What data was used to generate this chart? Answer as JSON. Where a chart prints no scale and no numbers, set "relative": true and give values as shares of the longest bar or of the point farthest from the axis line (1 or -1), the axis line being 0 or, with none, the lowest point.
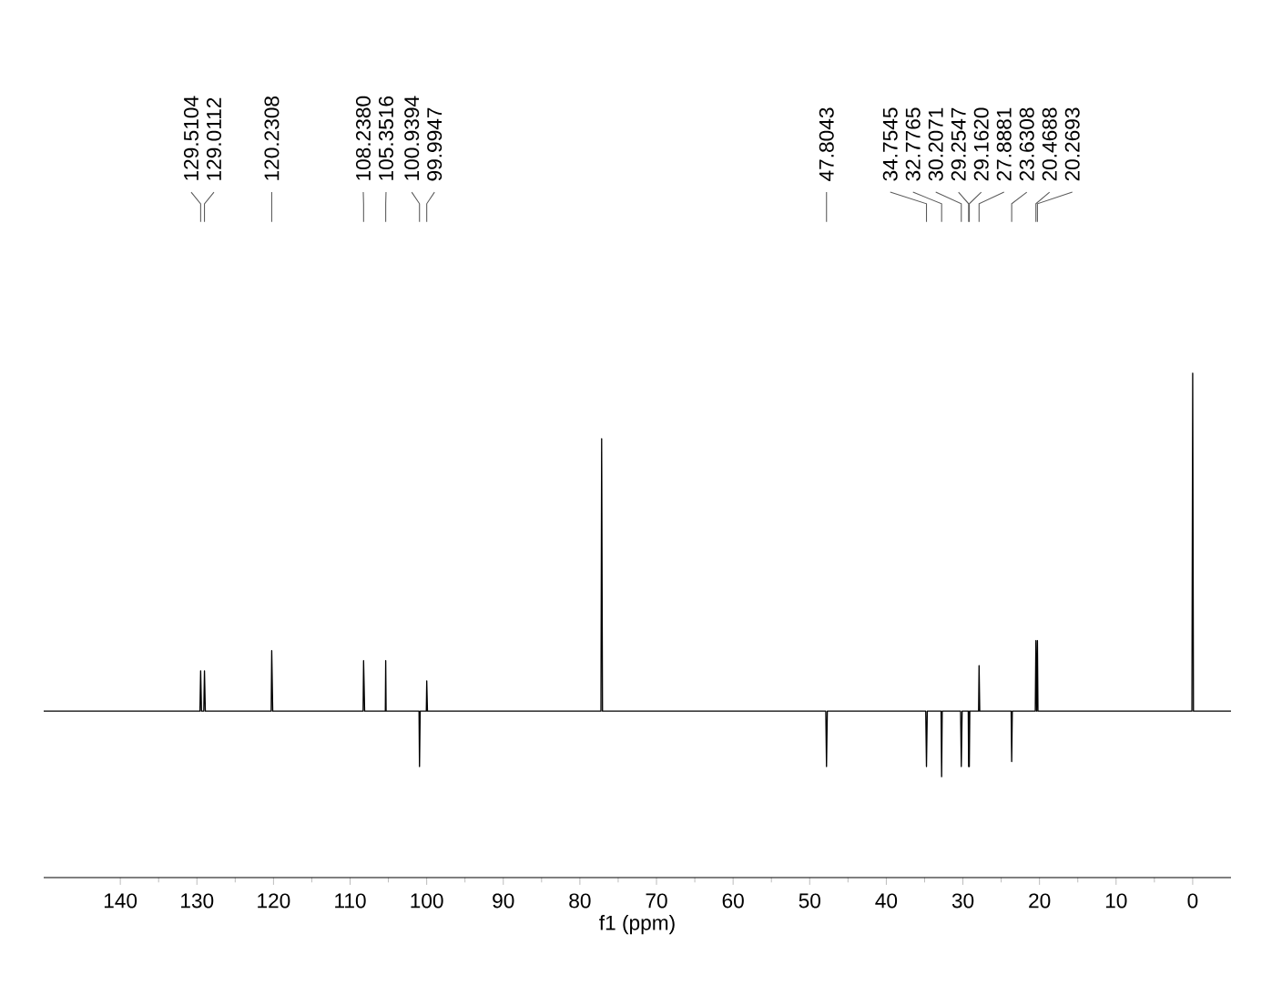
{
  "chart_data": {
    "type": "line",
    "relative": true,
    "xlabel": "f1 (ppm)",
    "xlim": [
      150,
      -5
    ],
    "xticks": [
      140,
      130,
      120,
      110,
      100,
      90,
      80,
      70,
      60,
      50,
      40,
      30,
      20,
      10,
      0
    ],
    "marker": "none",
    "line_style": "solid",
    "series": [
      {
        "color": "#000000",
        "x": [
          150,
          129.6,
          129.5104,
          129.4,
          129.1,
          129.0112,
          128.9,
          120.3,
          120.2308,
          120.1,
          108.3,
          108.238,
          108.1,
          105.4,
          105.3516,
          105.3,
          101.0,
          100.9394,
          100.85,
          100.05,
          99.9947,
          99.9,
          77.25,
          77.16,
          77.05,
          47.9,
          47.8043,
          47.7,
          34.85,
          34.7545,
          34.65,
          32.85,
          32.7765,
          32.7,
          30.3,
          30.2071,
          30.1,
          29.3,
          29.2547,
          29.21,
          29.162,
          29.1,
          27.95,
          27.8881,
          27.8,
          23.7,
          23.6308,
          23.55,
          20.55,
          20.4688,
          20.37,
          20.2693,
          20.2,
          0.1,
          0.0,
          -0.1,
          -5
        ],
        "values": [
          0.33,
          0.33,
          0.41,
          0.33,
          0.33,
          0.41,
          0.33,
          0.33,
          0.45,
          0.33,
          0.33,
          0.43,
          0.33,
          0.33,
          0.43,
          0.33,
          0.33,
          0.22,
          0.33,
          0.33,
          0.39,
          0.33,
          0.33,
          0.87,
          0.33,
          0.33,
          0.22,
          0.33,
          0.33,
          0.22,
          0.33,
          0.33,
          0.2,
          0.33,
          0.33,
          0.22,
          0.33,
          0.33,
          0.22,
          0.33,
          0.22,
          0.33,
          0.33,
          0.42,
          0.33,
          0.33,
          0.23,
          0.33,
          0.33,
          0.47,
          0.33,
          0.47,
          0.33,
          0.33,
          1,
          0.33,
          0.33
        ]
      }
    ],
    "annotations": [
      {
        "text": "129.5104",
        "x": 129.5104
      },
      {
        "text": "129.0112",
        "x": 129.0112
      },
      {
        "text": "120.2308",
        "x": 120.2308
      },
      {
        "text": "108.2380",
        "x": 108.238
      },
      {
        "text": "105.3516",
        "x": 105.3516
      },
      {
        "text": "100.9394",
        "x": 100.9394
      },
      {
        "text": "99.9947",
        "x": 99.9947
      },
      {
        "text": "47.8043",
        "x": 47.8043
      },
      {
        "text": "34.7545",
        "x": 34.7545
      },
      {
        "text": "32.7765",
        "x": 32.7765
      },
      {
        "text": "30.2071",
        "x": 30.2071
      },
      {
        "text": "29.2547",
        "x": 29.2547
      },
      {
        "text": "29.1620",
        "x": 29.162
      },
      {
        "text": "27.8881",
        "x": 27.8881
      },
      {
        "text": "23.6308",
        "x": 23.6308
      },
      {
        "text": "20.4688",
        "x": 20.4688
      },
      {
        "text": "20.2693",
        "x": 20.2693
      }
    ]
  }
}
